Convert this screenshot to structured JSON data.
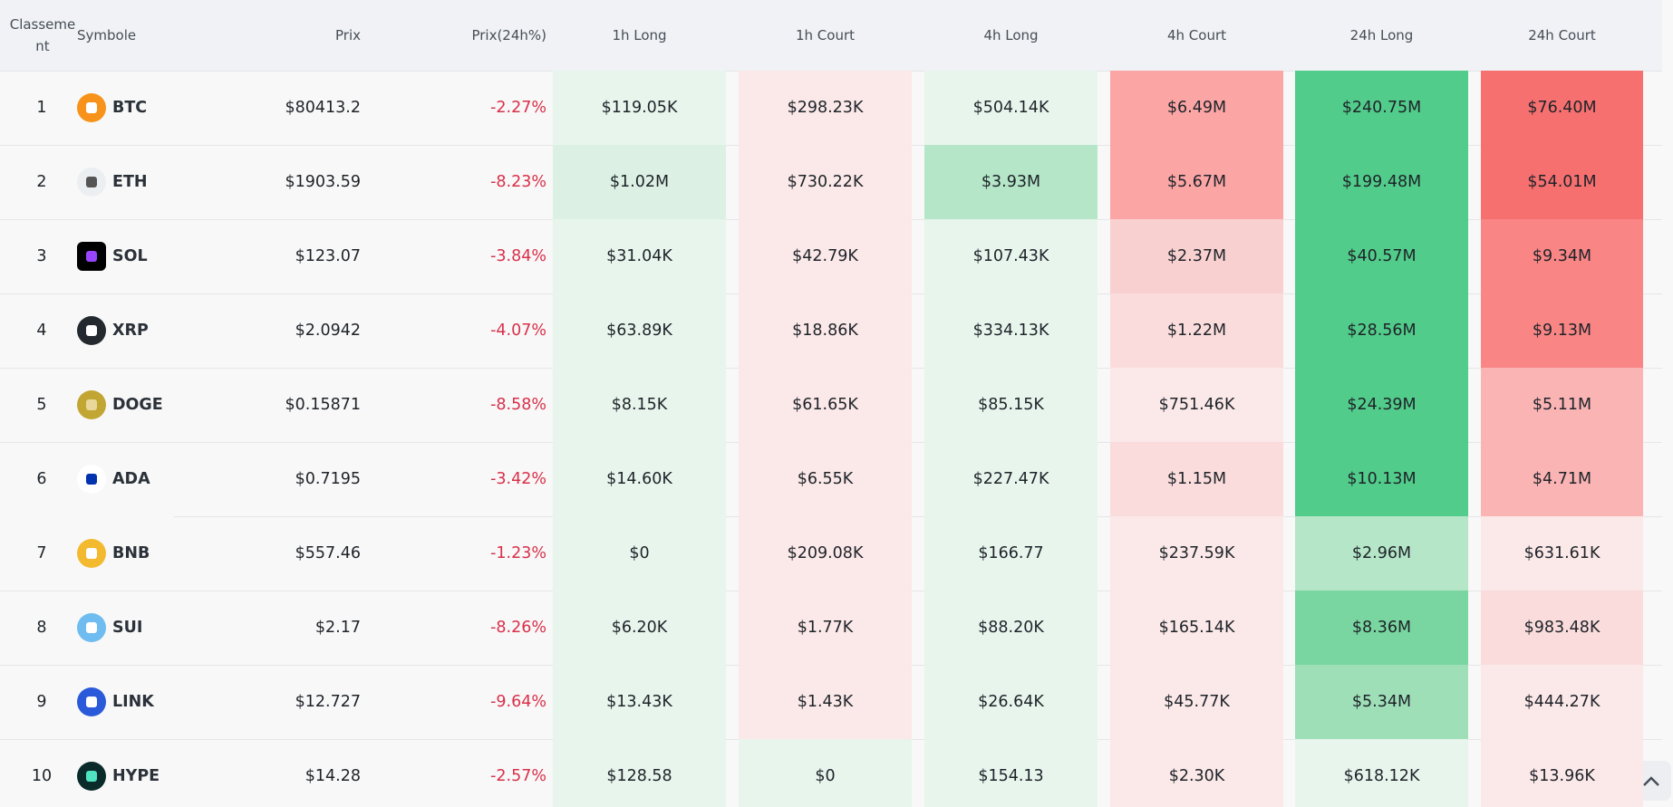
{
  "table": {
    "headers": [
      "Classement",
      "Symbole",
      "Prix",
      "Prix(24h%)",
      "1h Long",
      "1h Court",
      "4h Long",
      "4h Court",
      "24h Long",
      "24h Court"
    ],
    "rows": [
      [
        "1",
        "BTC",
        "$80413.2",
        "-2.27%",
        "$119.05K",
        "$298.23K",
        "$504.14K",
        "$6.49M",
        "$240.75M",
        "$76.40M"
      ],
      [
        "2",
        "ETH",
        "$1903.59",
        "-8.23%",
        "$1.02M",
        "$730.22K",
        "$3.93M",
        "$5.67M",
        "$199.48M",
        "$54.01M"
      ],
      [
        "3",
        "SOL",
        "$123.07",
        "-3.84%",
        "$31.04K",
        "$42.79K",
        "$107.43K",
        "$2.37M",
        "$40.57M",
        "$9.34M"
      ],
      [
        "4",
        "XRP",
        "$2.0942",
        "-4.07%",
        "$63.89K",
        "$18.86K",
        "$334.13K",
        "$1.22M",
        "$28.56M",
        "$9.13M"
      ],
      [
        "5",
        "DOGE",
        "$0.15871",
        "-8.58%",
        "$8.15K",
        "$61.65K",
        "$85.15K",
        "$751.46K",
        "$24.39M",
        "$5.11M"
      ],
      [
        "6",
        "ADA",
        "$0.7195",
        "-3.42%",
        "$14.60K",
        "$6.55K",
        "$227.47K",
        "$1.15M",
        "$10.13M",
        "$4.71M"
      ],
      [
        "7",
        "BNB",
        "$557.46",
        "-1.23%",
        "$0",
        "$209.08K",
        "$166.77",
        "$237.59K",
        "$2.96M",
        "$631.61K"
      ],
      [
        "8",
        "SUI",
        "$2.17",
        "-8.26%",
        "$6.20K",
        "$1.77K",
        "$88.20K",
        "$165.14K",
        "$8.36M",
        "$983.48K"
      ],
      [
        "9",
        "LINK",
        "$12.727",
        "-9.64%",
        "$13.43K",
        "$1.43K",
        "$26.64K",
        "$45.77K",
        "$5.34M",
        "$444.27K"
      ],
      [
        "10",
        "HYPE",
        "$14.28",
        "-2.57%",
        "$128.58",
        "$0",
        "$154.13",
        "$2.30K",
        "$618.12K",
        "$13.96K"
      ]
    ]
  }
}
